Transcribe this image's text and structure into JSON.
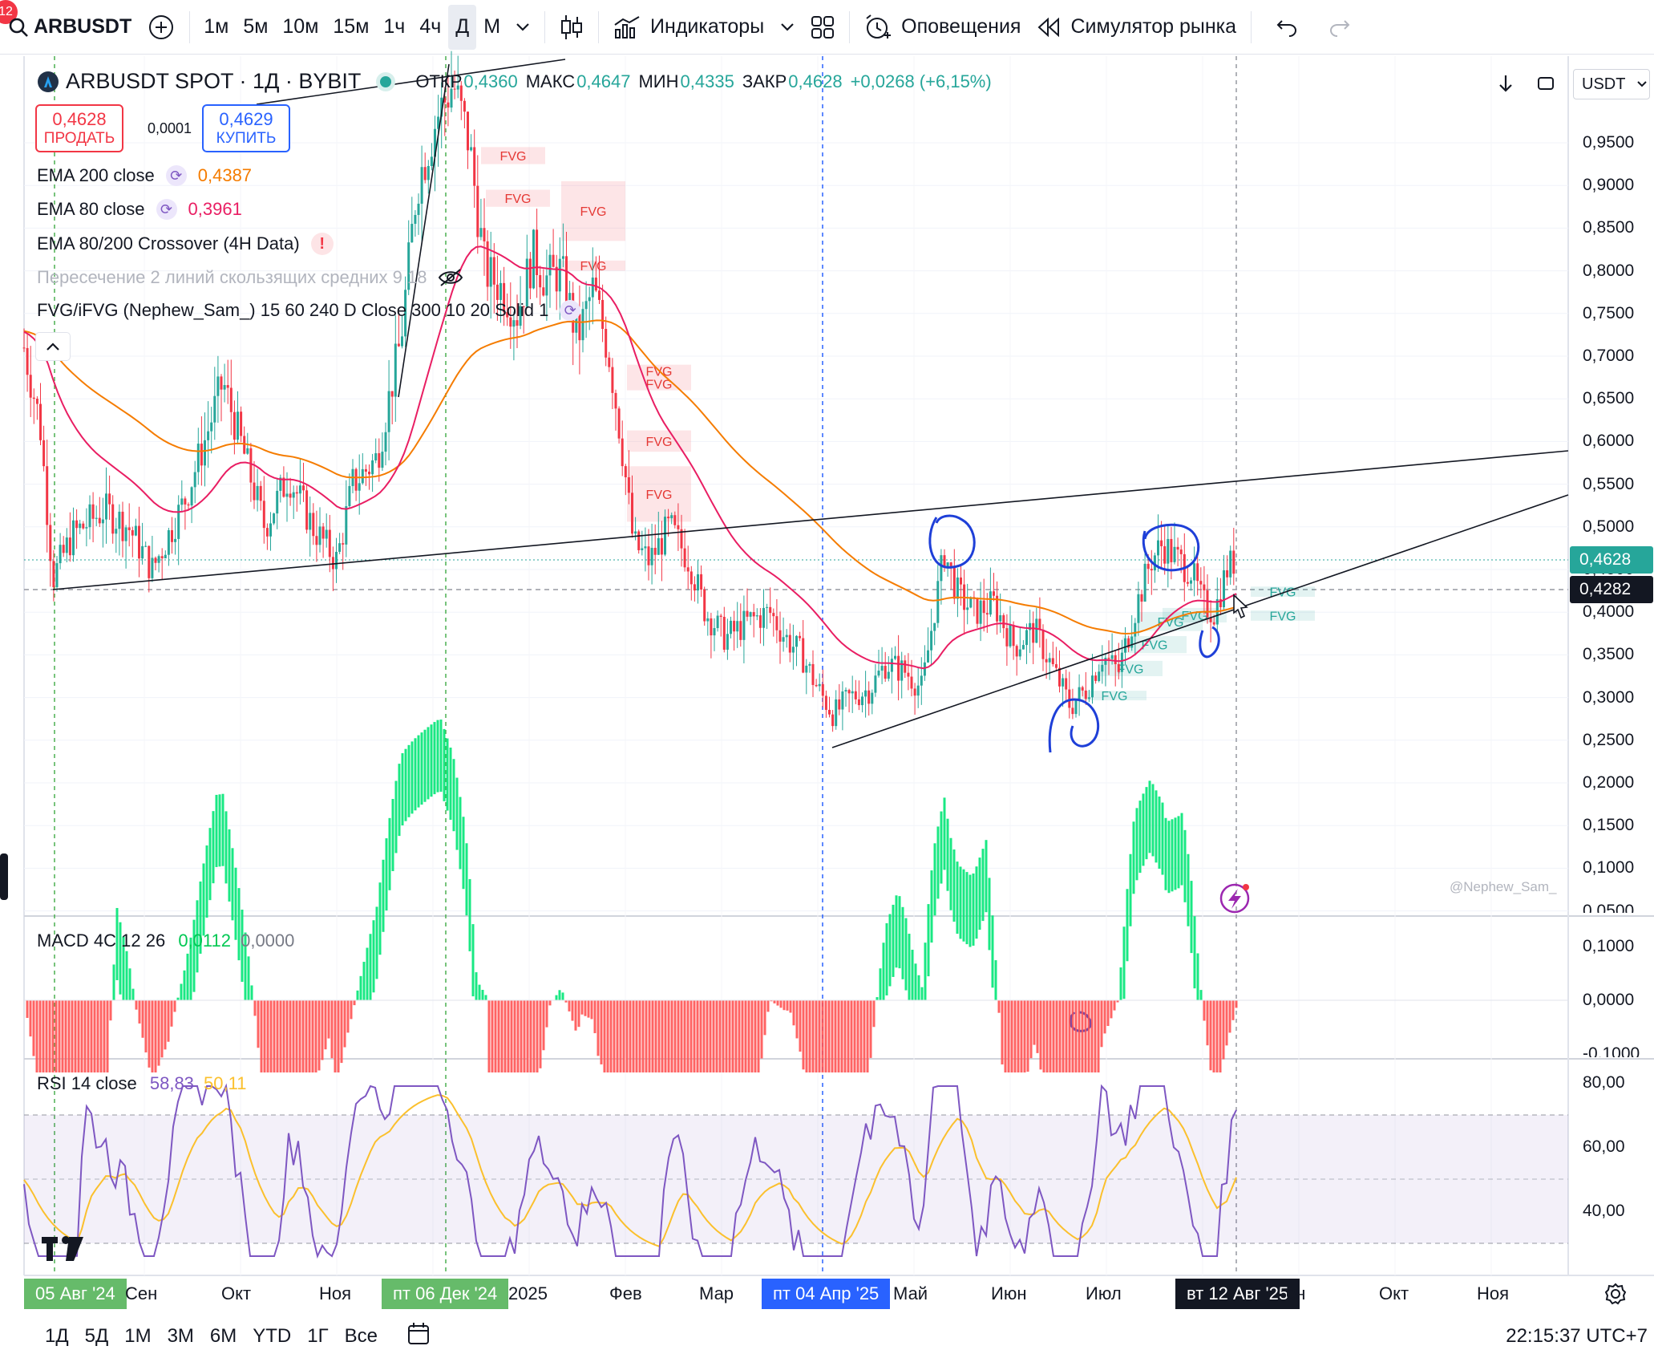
{
  "toolbar": {
    "notification_count": "12",
    "symbol": "ARBUSDT",
    "intervals": [
      "1м",
      "5м",
      "10м",
      "15м",
      "1ч",
      "4ч",
      "Д",
      "М"
    ],
    "active_interval": "Д",
    "indicators_label": "Индикаторы",
    "alerts_label": "Оповещения",
    "replay_label": "Симулятор рынка"
  },
  "legend": {
    "title": "ARBUSDT SPOT · 1Д · BYBIT",
    "open_k": "ОТКР",
    "open_v": "0,4360",
    "high_k": "МАКС",
    "high_v": "0,4647",
    "low_k": "МИН",
    "low_v": "0,4335",
    "close_k": "ЗАКР",
    "close_v": "0,4628",
    "change": "+0,0268 (+6,15%)",
    "sell_price": "0,4628",
    "sell_label": "ПРОДАТЬ",
    "buy_price": "0,4629",
    "buy_label": "КУПИТЬ",
    "spread": "0,0001",
    "indicators": [
      {
        "name": "EMA 200 close",
        "value": "0,4387"
      },
      {
        "name": "EMA 80 close",
        "value": "0,3961"
      },
      {
        "name": "EMA 80/200 Crossover (4H Data)"
      },
      {
        "name": "Пересечение 2 линий скользящих средних 9 18"
      },
      {
        "name": "FVG/iFVG (Nephew_Sam_) 15 60 240 D Close 300 10 20 Solid 1"
      }
    ]
  },
  "currency": "USDT",
  "price_scale": [
    "0,9500",
    "0,9000",
    "0,8500",
    "0,8000",
    "0,7500",
    "0,7000",
    "0,6500",
    "0,6000",
    "0,5500",
    "0,5000",
    "0,4500",
    "0,4000",
    "0,3500",
    "0,3000",
    "0,2500",
    "0,2000",
    "0,1500",
    "0,1000",
    "0,0500"
  ],
  "last_price_tag": "0,4628",
  "crosshair_price_tag": "0,4282",
  "fvg_label": "FVG",
  "watermark": "@Nephew_Sam_",
  "macd": {
    "title": "MACD 4C 12 26",
    "value1": "0,0112",
    "value2": "0,0000",
    "scale": [
      "0,1000",
      "0,0000",
      "-0,1000"
    ]
  },
  "rsi": {
    "title": "RSI 14 close",
    "value1": "58,83",
    "value2": "50,11",
    "scale": [
      "80,00",
      "60,00",
      "40,00"
    ]
  },
  "time_axis": [
    "05 Авг '24",
    "Сен",
    "Окт",
    "Ноя",
    "пт 06 Дек '24",
    "2025",
    "Фев",
    "Мар",
    "пт 04 Апр '25",
    "Май",
    "Июн",
    "Июл",
    "вт 12 Авг '25",
    "ен",
    "Окт",
    "Ноя"
  ],
  "bottom_ranges": [
    "1Д",
    "5Д",
    "1М",
    "3М",
    "6М",
    "YTD",
    "1Г",
    "Все"
  ],
  "clock": "22:15:37 UTC+7",
  "colors": {
    "up": "#26a69a",
    "down": "#f23645",
    "ema200": "#f57c00",
    "ema80": "#e91e63",
    "rsi": "#7e57c2",
    "rsi_ma": "#fbc02d",
    "macd_up": "#00e676",
    "macd_down": "#ff5252",
    "annotation": "#1e3fd8"
  }
}
